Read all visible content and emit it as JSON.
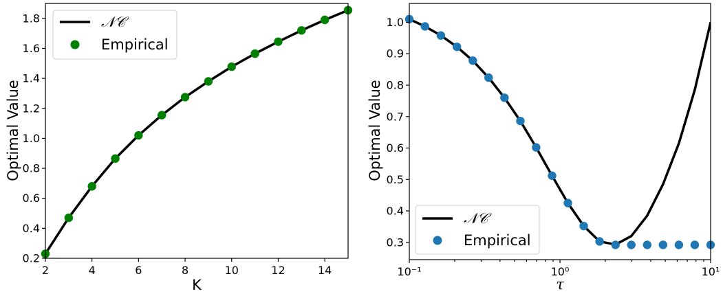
{
  "chart_data": [
    {
      "type": "line",
      "xlabel": "K",
      "ylabel": "Optimal Value",
      "xlim": [
        2,
        15
      ],
      "ylim": [
        0.2,
        1.9
      ],
      "xticks": [
        2,
        4,
        6,
        8,
        10,
        12,
        14
      ],
      "xtick_labels": [
        "2",
        "4",
        "6",
        "8",
        "10",
        "12",
        "14"
      ],
      "yticks": [
        0.2,
        0.4,
        0.6,
        0.8,
        1.0,
        1.2,
        1.4,
        1.6,
        1.8
      ],
      "ytick_labels": [
        "0.2",
        "0.4",
        "0.6",
        "0.8",
        "1.0",
        "1.2",
        "1.4",
        "1.6",
        "1.8"
      ],
      "grid": false,
      "legend_position": "top-left",
      "series": [
        {
          "name": "𝒩𝒞",
          "style": "line",
          "color": "#000000",
          "x": [
            2,
            3,
            4,
            5,
            6,
            7,
            8,
            9,
            10,
            11,
            12,
            13,
            14,
            15
          ],
          "y": [
            0.23,
            0.47,
            0.68,
            0.865,
            1.02,
            1.155,
            1.275,
            1.38,
            1.478,
            1.565,
            1.645,
            1.72,
            1.79,
            1.855
          ]
        },
        {
          "name": "Empirical",
          "style": "scatter",
          "color": "#008000",
          "x": [
            2,
            3,
            4,
            5,
            6,
            7,
            8,
            9,
            10,
            11,
            12,
            13,
            14,
            15
          ],
          "y": [
            0.23,
            0.47,
            0.68,
            0.865,
            1.02,
            1.155,
            1.275,
            1.38,
            1.478,
            1.565,
            1.645,
            1.72,
            1.79,
            1.855
          ]
        }
      ]
    },
    {
      "type": "line",
      "xlabel": "τ",
      "ylabel": "Optimal Value",
      "xscale": "log",
      "xlim": [
        0.1,
        10
      ],
      "ylim": [
        0.245,
        1.06
      ],
      "xticks": [
        0.1,
        1,
        10
      ],
      "xtick_labels": [
        "10⁻¹",
        "10⁰",
        "10¹"
      ],
      "yticks": [
        0.3,
        0.4,
        0.5,
        0.6,
        0.7,
        0.8,
        0.9,
        1.0
      ],
      "ytick_labels": [
        "0.3",
        "0.4",
        "0.5",
        "0.6",
        "0.7",
        "0.8",
        "0.9",
        "1.0"
      ],
      "grid": false,
      "legend_position": "bottom-left",
      "series": [
        {
          "name": "𝒩𝒞",
          "style": "line",
          "color": "#000000",
          "x": [
            0.1,
            0.127,
            0.162,
            0.207,
            0.264,
            0.336,
            0.428,
            0.546,
            0.695,
            0.886,
            1.129,
            1.438,
            1.833,
            2.336,
            2.976,
            3.793,
            4.833,
            6.158,
            7.848,
            10.0
          ],
          "y": [
            1.01,
            0.987,
            0.958,
            0.922,
            0.878,
            0.824,
            0.76,
            0.686,
            0.602,
            0.512,
            0.425,
            0.352,
            0.303,
            0.293,
            0.32,
            0.385,
            0.485,
            0.615,
            0.785,
            1.0
          ]
        },
        {
          "name": "Empirical",
          "style": "scatter",
          "color": "#1f77b4",
          "x": [
            0.1,
            0.127,
            0.162,
            0.207,
            0.264,
            0.336,
            0.428,
            0.546,
            0.695,
            0.886,
            1.129,
            1.438,
            1.833,
            2.336,
            2.976,
            3.793,
            4.833,
            6.158,
            7.848,
            10.0
          ],
          "y": [
            1.01,
            0.987,
            0.958,
            0.922,
            0.878,
            0.824,
            0.76,
            0.686,
            0.602,
            0.512,
            0.425,
            0.352,
            0.303,
            0.292,
            0.292,
            0.292,
            0.292,
            0.292,
            0.292,
            0.292
          ]
        }
      ]
    }
  ]
}
